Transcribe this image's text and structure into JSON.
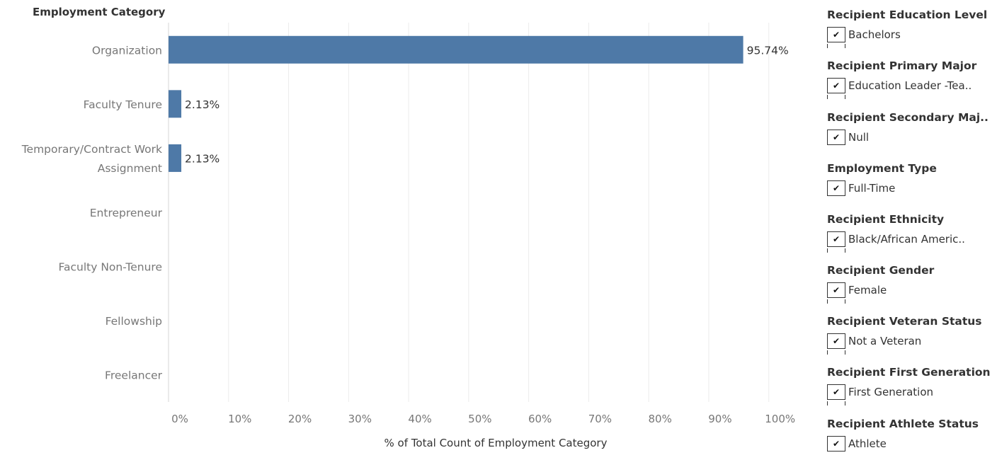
{
  "chart_data": {
    "type": "bar",
    "orientation": "horizontal",
    "row_header": "Employment Category",
    "categories": [
      "Organization",
      "Faculty Tenure",
      "Temporary/Contract Work Assignment",
      "Entrepreneur",
      "Faculty Non-Tenure",
      "Fellowship",
      "Freelancer"
    ],
    "category_lines": [
      [
        "Organization"
      ],
      [
        "Faculty Tenure"
      ],
      [
        "Temporary/Contract Work",
        "Assignment"
      ],
      [
        "Entrepreneur"
      ],
      [
        "Faculty Non-Tenure"
      ],
      [
        "Fellowship"
      ],
      [
        "Freelancer"
      ]
    ],
    "values": [
      95.74,
      2.13,
      2.13,
      null,
      null,
      null,
      null
    ],
    "value_labels": [
      "95.74%",
      "2.13%",
      "2.13%",
      "",
      "",
      "",
      ""
    ],
    "xlabel": "% of Total Count of Employment Category",
    "xlim": [
      0,
      109
    ],
    "xticks": [
      0,
      10,
      20,
      30,
      40,
      50,
      60,
      70,
      80,
      90,
      100
    ],
    "xtick_labels": [
      "0%",
      "10%",
      "20%",
      "30%",
      "40%",
      "50%",
      "60%",
      "70%",
      "80%",
      "90%",
      "100%"
    ],
    "grid": "vertical",
    "bar_color": "#4e79a7"
  },
  "filters": [
    {
      "title": "Recipient Education Level",
      "value": "Bachelors",
      "more": true
    },
    {
      "title": "Recipient Primary Major",
      "value": "Education Leader -Tea..",
      "more": true
    },
    {
      "title": "Recipient Secondary Maj..",
      "value": "Null",
      "more": false
    },
    {
      "title": "Employment Type",
      "value": "Full-Time",
      "more": false
    },
    {
      "title": "Recipient Ethnicity",
      "value": "Black/African Americ..",
      "more": true
    },
    {
      "title": "Recipient Gender",
      "value": "Female",
      "more": true
    },
    {
      "title": "Recipient Veteran Status",
      "value": "Not a Veteran",
      "more": true
    },
    {
      "title": "Recipient First Generation",
      "value": "First Generation",
      "more": true
    },
    {
      "title": "Recipient Athlete Status",
      "value": "Athlete",
      "more": true
    }
  ],
  "checkmark": "✔"
}
